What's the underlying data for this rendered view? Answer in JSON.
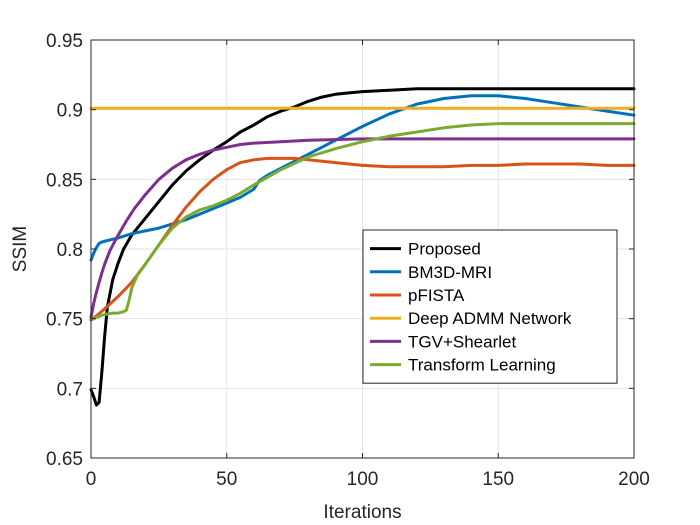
{
  "chart_data": {
    "type": "line",
    "title": "",
    "xlabel": "Iterations",
    "ylabel": "SSIM",
    "xlim": [
      0,
      200
    ],
    "ylim": [
      0.65,
      0.95
    ],
    "xticks": [
      0,
      50,
      100,
      150,
      200
    ],
    "xtick_labels": [
      "0",
      "50",
      "100",
      "150",
      "200"
    ],
    "yticks": [
      0.65,
      0.7,
      0.75,
      0.8,
      0.85,
      0.9,
      0.95
    ],
    "ytick_labels": [
      "0.65",
      "0.7",
      "0.75",
      "0.8",
      "0.85",
      "0.9",
      "0.95"
    ],
    "grid": true,
    "legend_position": "bottom-right",
    "series": [
      {
        "name": "Proposed",
        "color": "#000000",
        "x": [
          0,
          1,
          2,
          3,
          4,
          5,
          6,
          8,
          10,
          12,
          15,
          20,
          25,
          30,
          35,
          40,
          45,
          50,
          55,
          60,
          65,
          70,
          75,
          80,
          85,
          90,
          95,
          100,
          110,
          120,
          140,
          160,
          180,
          200
        ],
        "y": [
          0.699,
          0.694,
          0.688,
          0.69,
          0.712,
          0.737,
          0.758,
          0.778,
          0.79,
          0.8,
          0.81,
          0.822,
          0.834,
          0.846,
          0.856,
          0.864,
          0.871,
          0.877,
          0.884,
          0.889,
          0.895,
          0.899,
          0.902,
          0.906,
          0.909,
          0.911,
          0.912,
          0.913,
          0.914,
          0.915,
          0.915,
          0.915,
          0.915,
          0.915
        ]
      },
      {
        "name": "BM3D-MRI",
        "color": "#0072BD",
        "x": [
          0,
          1,
          2,
          3,
          4,
          6,
          10,
          15,
          20,
          25,
          30,
          35,
          40,
          45,
          50,
          55,
          60,
          62,
          65,
          70,
          80,
          90,
          100,
          110,
          120,
          130,
          140,
          145,
          150,
          160,
          170,
          180,
          190,
          200
        ],
        "y": [
          0.792,
          0.797,
          0.801,
          0.804,
          0.805,
          0.806,
          0.808,
          0.811,
          0.813,
          0.815,
          0.818,
          0.821,
          0.825,
          0.829,
          0.833,
          0.837,
          0.843,
          0.849,
          0.853,
          0.858,
          0.868,
          0.878,
          0.888,
          0.897,
          0.904,
          0.908,
          0.91,
          0.91,
          0.91,
          0.908,
          0.905,
          0.902,
          0.899,
          0.896
        ]
      },
      {
        "name": "pFISTA",
        "color": "#D95319",
        "x": [
          0,
          2,
          5,
          10,
          15,
          20,
          25,
          30,
          35,
          40,
          45,
          50,
          55,
          60,
          65,
          70,
          75,
          80,
          90,
          100,
          110,
          120,
          130,
          140,
          150,
          160,
          170,
          180,
          190,
          200
        ],
        "y": [
          0.749,
          0.752,
          0.757,
          0.766,
          0.776,
          0.789,
          0.803,
          0.817,
          0.83,
          0.841,
          0.85,
          0.857,
          0.862,
          0.864,
          0.865,
          0.865,
          0.865,
          0.864,
          0.862,
          0.86,
          0.859,
          0.859,
          0.859,
          0.86,
          0.86,
          0.861,
          0.861,
          0.861,
          0.86,
          0.86
        ]
      },
      {
        "name": "Deep ADMM Network",
        "color": "#EDB120",
        "x": [
          0,
          200
        ],
        "y": [
          0.901,
          0.901
        ]
      },
      {
        "name": "TGV+Shearlet",
        "color": "#7E2F8E",
        "x": [
          0,
          1,
          2,
          3,
          4,
          5,
          7,
          10,
          13,
          16,
          20,
          25,
          30,
          35,
          40,
          45,
          50,
          55,
          60,
          70,
          80,
          100,
          120,
          150,
          200
        ],
        "y": [
          0.751,
          0.761,
          0.769,
          0.776,
          0.783,
          0.789,
          0.799,
          0.81,
          0.82,
          0.829,
          0.839,
          0.85,
          0.858,
          0.864,
          0.868,
          0.871,
          0.873,
          0.875,
          0.876,
          0.877,
          0.878,
          0.879,
          0.879,
          0.879,
          0.879
        ]
      },
      {
        "name": "Transform Learning",
        "color": "#77AC30",
        "x": [
          0,
          2,
          5,
          8,
          10,
          12,
          13,
          14,
          15,
          17,
          20,
          25,
          30,
          35,
          40,
          45,
          50,
          55,
          60,
          70,
          80,
          90,
          100,
          110,
          120,
          130,
          140,
          150,
          160,
          180,
          200
        ],
        "y": [
          0.749,
          0.751,
          0.753,
          0.754,
          0.754,
          0.755,
          0.756,
          0.763,
          0.772,
          0.781,
          0.789,
          0.803,
          0.815,
          0.823,
          0.828,
          0.831,
          0.835,
          0.84,
          0.846,
          0.857,
          0.866,
          0.872,
          0.877,
          0.881,
          0.884,
          0.887,
          0.889,
          0.89,
          0.89,
          0.89,
          0.89
        ]
      }
    ]
  }
}
